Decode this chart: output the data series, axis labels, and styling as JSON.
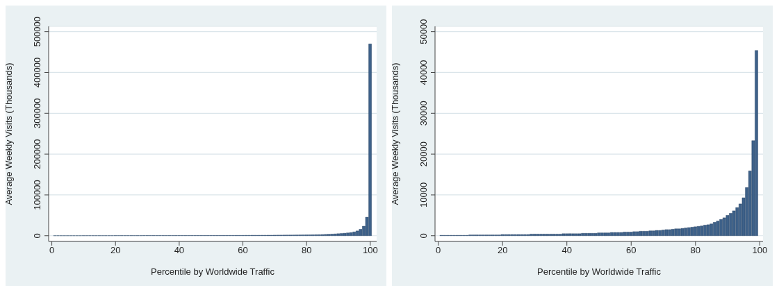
{
  "chart_data": [
    {
      "type": "bar",
      "xlabel": "Percentile by Worldwide Traffic",
      "ylabel": "Average Weekly Visits  (Thousands)",
      "color": "#3e6189",
      "grid": "y",
      "x": [
        1,
        2,
        3,
        4,
        5,
        6,
        7,
        8,
        9,
        10,
        11,
        12,
        13,
        14,
        15,
        16,
        17,
        18,
        19,
        20,
        21,
        22,
        23,
        24,
        25,
        26,
        27,
        28,
        29,
        30,
        31,
        32,
        33,
        34,
        35,
        36,
        37,
        38,
        39,
        40,
        41,
        42,
        43,
        44,
        45,
        46,
        47,
        48,
        49,
        50,
        51,
        52,
        53,
        54,
        55,
        56,
        57,
        58,
        59,
        60,
        61,
        62,
        63,
        64,
        65,
        66,
        67,
        68,
        69,
        70,
        71,
        72,
        73,
        74,
        75,
        76,
        77,
        78,
        79,
        80,
        81,
        82,
        83,
        84,
        85,
        86,
        87,
        88,
        89,
        90,
        91,
        92,
        93,
        94,
        95,
        96,
        97,
        98,
        99,
        100
      ],
      "values": [
        100,
        100,
        100,
        100,
        100,
        100,
        100,
        100,
        100,
        200,
        200,
        200,
        200,
        200,
        200,
        200,
        200,
        200,
        200,
        300,
        300,
        300,
        300,
        300,
        300,
        300,
        300,
        300,
        400,
        400,
        400,
        400,
        400,
        400,
        400,
        400,
        400,
        400,
        500,
        500,
        500,
        500,
        500,
        500,
        600,
        600,
        600,
        600,
        600,
        700,
        700,
        700,
        700,
        800,
        800,
        800,
        800,
        900,
        900,
        900,
        1000,
        1000,
        1100,
        1100,
        1100,
        1200,
        1200,
        1300,
        1300,
        1400,
        1500,
        1500,
        1600,
        1700,
        1700,
        1800,
        1900,
        2000,
        2100,
        2200,
        2300,
        2400,
        2600,
        2700,
        2900,
        3300,
        3600,
        4000,
        4400,
        5000,
        5500,
        6100,
        6900,
        7800,
        9300,
        11800,
        15900,
        23300,
        45400,
        470000
      ],
      "xlim": [
        -1,
        102
      ],
      "xticks": [
        0,
        20,
        40,
        60,
        80,
        100
      ],
      "ylim": [
        -14000,
        513000
      ],
      "yticks": [
        0,
        100000,
        200000,
        300000,
        400000,
        500000
      ]
    },
    {
      "type": "bar",
      "xlabel": "Percentile by Worldwide Traffic",
      "ylabel": "Average Weekly Visits  (Thousands)",
      "color": "#3e6189",
      "grid": "y",
      "x": [
        1,
        2,
        3,
        4,
        5,
        6,
        7,
        8,
        9,
        10,
        11,
        12,
        13,
        14,
        15,
        16,
        17,
        18,
        19,
        20,
        21,
        22,
        23,
        24,
        25,
        26,
        27,
        28,
        29,
        30,
        31,
        32,
        33,
        34,
        35,
        36,
        37,
        38,
        39,
        40,
        41,
        42,
        43,
        44,
        45,
        46,
        47,
        48,
        49,
        50,
        51,
        52,
        53,
        54,
        55,
        56,
        57,
        58,
        59,
        60,
        61,
        62,
        63,
        64,
        65,
        66,
        67,
        68,
        69,
        70,
        71,
        72,
        73,
        74,
        75,
        76,
        77,
        78,
        79,
        80,
        81,
        82,
        83,
        84,
        85,
        86,
        87,
        88,
        89,
        90,
        91,
        92,
        93,
        94,
        95,
        96,
        97,
        98,
        99
      ],
      "values": [
        100,
        100,
        100,
        100,
        100,
        100,
        100,
        100,
        100,
        200,
        200,
        200,
        200,
        200,
        200,
        200,
        200,
        200,
        200,
        300,
        300,
        300,
        300,
        300,
        300,
        300,
        300,
        300,
        400,
        400,
        400,
        400,
        400,
        400,
        400,
        400,
        400,
        400,
        500,
        500,
        500,
        500,
        500,
        500,
        600,
        600,
        600,
        600,
        600,
        700,
        700,
        700,
        700,
        800,
        800,
        800,
        800,
        900,
        900,
        900,
        1000,
        1000,
        1100,
        1100,
        1100,
        1200,
        1200,
        1300,
        1300,
        1400,
        1500,
        1500,
        1600,
        1700,
        1700,
        1800,
        1900,
        2000,
        2100,
        2200,
        2300,
        2400,
        2600,
        2700,
        2900,
        3300,
        3600,
        4000,
        4400,
        5000,
        5500,
        6100,
        6900,
        7800,
        9300,
        11800,
        15900,
        23300,
        45400
      ],
      "xlim": [
        -1,
        101
      ],
      "xticks": [
        0,
        20,
        40,
        60,
        80,
        100
      ],
      "ylim": [
        -1400,
        51300
      ],
      "yticks": [
        0,
        10000,
        20000,
        30000,
        40000,
        50000
      ]
    }
  ]
}
